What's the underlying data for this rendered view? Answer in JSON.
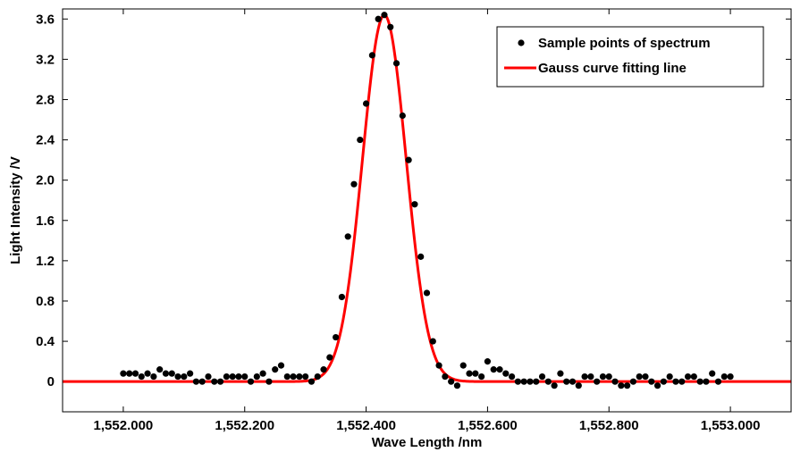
{
  "chart_data": {
    "type": "scatter",
    "title": "",
    "xlabel": "Wave Length /nm",
    "ylabel": "Light Intensity /V",
    "xlim": [
      1551.9,
      1553.1
    ],
    "ylim": [
      -0.3,
      3.7
    ],
    "x_ticks": [
      1552.0,
      1552.2,
      1552.4,
      1552.6,
      1552.8,
      1553.0
    ],
    "x_tick_labels": [
      "1,552.000",
      "1,552.200",
      "1,552.400",
      "1,552.600",
      "1,552.800",
      "1,553.000"
    ],
    "y_ticks": [
      0,
      0.4,
      0.8,
      1.2,
      1.6,
      2.0,
      2.4,
      2.8,
      3.2,
      3.6
    ],
    "y_tick_labels": [
      "0",
      "0.4",
      "0.8",
      "1.2",
      "1.6",
      "2.0",
      "2.4",
      "2.8",
      "3.2",
      "3.6"
    ],
    "grid": false,
    "legend_position": "top-right",
    "series": [
      {
        "name": "Sample points of spectrum",
        "kind": "scatter",
        "color": "#000000",
        "x": [
          1552.0,
          1552.01,
          1552.02,
          1552.03,
          1552.04,
          1552.05,
          1552.06,
          1552.07,
          1552.08,
          1552.09,
          1552.1,
          1552.11,
          1552.12,
          1552.13,
          1552.14,
          1552.15,
          1552.16,
          1552.17,
          1552.18,
          1552.19,
          1552.2,
          1552.21,
          1552.22,
          1552.23,
          1552.24,
          1552.25,
          1552.26,
          1552.27,
          1552.28,
          1552.29,
          1552.3,
          1552.31,
          1552.32,
          1552.33,
          1552.34,
          1552.35,
          1552.36,
          1552.37,
          1552.38,
          1552.39,
          1552.4,
          1552.41,
          1552.42,
          1552.43,
          1552.44,
          1552.45,
          1552.46,
          1552.47,
          1552.48,
          1552.49,
          1552.5,
          1552.51,
          1552.52,
          1552.53,
          1552.54,
          1552.55,
          1552.56,
          1552.57,
          1552.58,
          1552.59,
          1552.6,
          1552.61,
          1552.62,
          1552.63,
          1552.64,
          1552.65,
          1552.66,
          1552.67,
          1552.68,
          1552.69,
          1552.7,
          1552.71,
          1552.72,
          1552.73,
          1552.74,
          1552.75,
          1552.76,
          1552.77,
          1552.78,
          1552.79,
          1552.8,
          1552.81,
          1552.82,
          1552.83,
          1552.84,
          1552.85,
          1552.86,
          1552.87,
          1552.88,
          1552.89,
          1552.9,
          1552.91,
          1552.92,
          1552.93,
          1552.94,
          1552.95,
          1552.96,
          1552.97,
          1552.98,
          1552.99,
          1553.0
        ],
        "y": [
          0.08,
          0.08,
          0.08,
          0.05,
          0.08,
          0.05,
          0.12,
          0.08,
          0.08,
          0.05,
          0.05,
          0.08,
          0.0,
          0.0,
          0.05,
          0.0,
          0.0,
          0.05,
          0.05,
          0.05,
          0.05,
          0.0,
          0.05,
          0.08,
          0.0,
          0.12,
          0.16,
          0.05,
          0.05,
          0.05,
          0.05,
          0.0,
          0.05,
          0.12,
          0.24,
          0.44,
          0.84,
          1.44,
          1.96,
          2.4,
          2.76,
          3.24,
          3.6,
          3.64,
          3.52,
          3.16,
          2.64,
          2.2,
          1.76,
          1.24,
          0.88,
          0.4,
          0.16,
          0.05,
          0.0,
          -0.04,
          0.16,
          0.08,
          0.08,
          0.05,
          0.2,
          0.12,
          0.12,
          0.08,
          0.05,
          0.0,
          0.0,
          0.0,
          0.0,
          0.05,
          0.0,
          -0.04,
          0.08,
          0.0,
          0.0,
          -0.04,
          0.05,
          0.05,
          0.0,
          0.05,
          0.05,
          0.0,
          -0.04,
          -0.04,
          0.0,
          0.05,
          0.05,
          0.0,
          -0.04,
          0.0,
          0.05,
          0.0,
          0.0,
          0.05,
          0.05,
          0.0,
          0.0,
          0.08,
          0.0,
          0.05,
          0.05
        ]
      },
      {
        "name": "Gauss curve fitting line",
        "kind": "line",
        "color": "#ff0000",
        "amplitude": 3.64,
        "center": 1552.43,
        "sigma": 0.036
      }
    ]
  }
}
